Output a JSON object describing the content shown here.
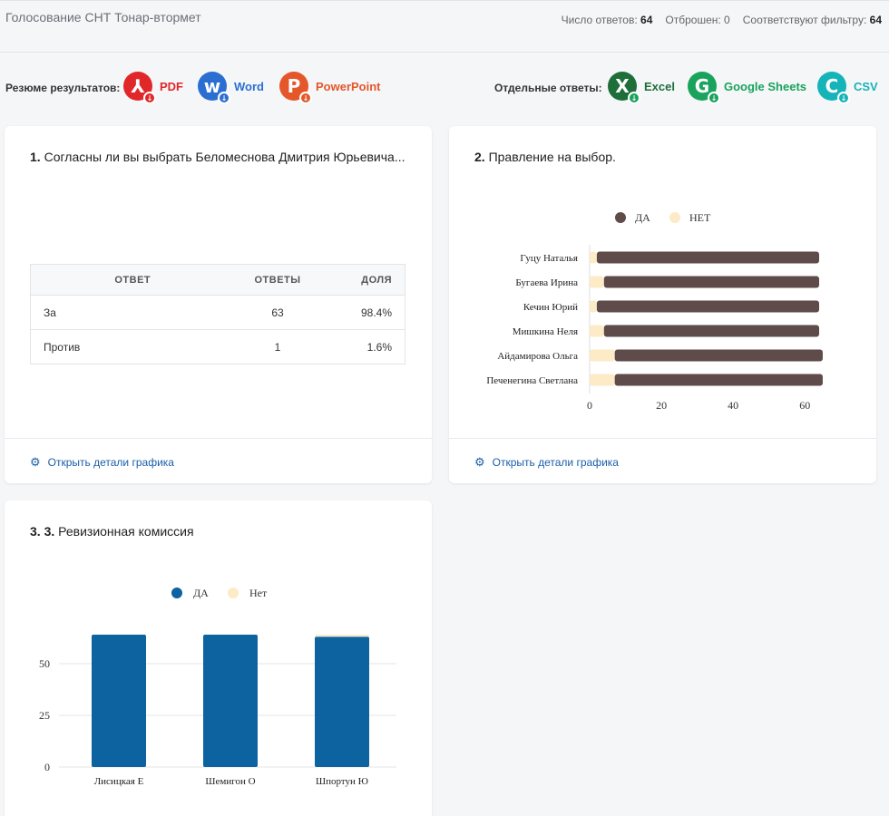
{
  "header": {
    "title": "Голосование СНТ Тонар-втормет",
    "stats": [
      {
        "label": "Число ответов:",
        "value": "64"
      },
      {
        "label": "Отброшен:",
        "value": "0"
      },
      {
        "label": "Соответствуют фильтру:",
        "value": "64"
      }
    ]
  },
  "exports": {
    "summary_label": "Резюме результатов:",
    "individual_label": "Отдельные ответы:",
    "pdf": {
      "label": "PDF",
      "glyph": "⅄",
      "color": "#e0282a",
      "icon": "pdf-icon"
    },
    "word": {
      "label": "Word",
      "glyph": "w",
      "color": "#2b6ed1",
      "icon": "word-icon"
    },
    "powerpoint": {
      "label": "PowerPoint",
      "glyph": "P",
      "color": "#e4572a",
      "icon": "powerpoint-icon"
    },
    "excel": {
      "label": "Excel",
      "glyph": "X",
      "color": "#1e6e3a",
      "icon": "excel-icon"
    },
    "sheets": {
      "label": "Google Sheets",
      "glyph": "G",
      "color": "#19a35d",
      "icon": "google-sheets-icon"
    },
    "csv": {
      "label": "CSV",
      "glyph": "C",
      "color": "#15b4b8",
      "icon": "csv-icon"
    },
    "download_glyph": "↓"
  },
  "q1": {
    "num": "1.",
    "title": "Согласны ли вы выбрать Беломеснова Дмитрия Юрьевича...",
    "table": {
      "headers": [
        "ОТВЕТ",
        "ОТВЕТЫ",
        "ДОЛЯ"
      ],
      "rows": [
        {
          "answer": "За",
          "count": "63",
          "share": "98.4%"
        },
        {
          "answer": "Против",
          "count": "1",
          "share": "1.6%"
        }
      ]
    },
    "details_link": "Открыть детали графика"
  },
  "q2": {
    "num": "2.",
    "title": "Правление на выбор.",
    "details_link": "Открыть детали графика"
  },
  "q3": {
    "num": "3. 3.",
    "title": "Ревизионная комиссия"
  },
  "chart_data": [
    {
      "type": "bar",
      "orientation": "horizontal",
      "stacked": true,
      "categories": [
        "Гуцу Наталья",
        "Бугаева Ирина",
        "Кечин Юрий",
        "Мишкина Неля",
        "Айдамирова Ольга",
        "Печенегина Светлана"
      ],
      "series": [
        {
          "name": "ДА",
          "color": "#5e4b4a",
          "values": [
            62,
            60,
            62,
            60,
            58,
            58
          ]
        },
        {
          "name": "НЕТ",
          "color": "#fcebc6",
          "values": [
            2,
            4,
            2,
            4,
            7,
            7
          ]
        }
      ],
      "xlim": [
        0,
        64
      ],
      "xticks": [
        "0",
        "20",
        "40",
        "60"
      ],
      "legend": "top"
    },
    {
      "type": "bar",
      "stacked": true,
      "categories": [
        "Лисицкая Е",
        "Шемигон О",
        "Шпортун Ю"
      ],
      "series": [
        {
          "name": "ДА",
          "color": "#0d62a0",
          "values": [
            64,
            64,
            63
          ]
        },
        {
          "name": "Нет",
          "color": "#fcebc6",
          "values": [
            0,
            0,
            1
          ]
        }
      ],
      "ylim": [
        0,
        64
      ],
      "yticks": [
        "0",
        "25",
        "50"
      ],
      "grid": true,
      "legend": "top"
    }
  ]
}
